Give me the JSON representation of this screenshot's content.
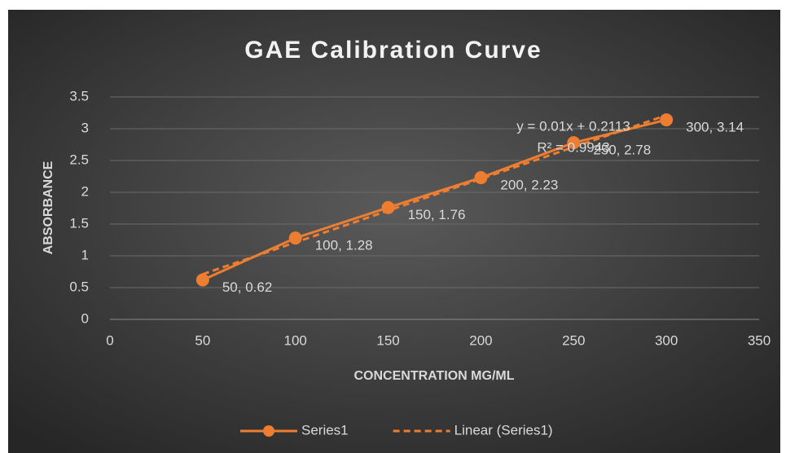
{
  "chart_data": {
    "type": "line",
    "title": "GAE Calibration Curve",
    "xlabel": "CONCENTRATION MG/ML",
    "ylabel": "ABSORBANCE",
    "x": [
      50,
      100,
      150,
      200,
      250,
      300
    ],
    "series": [
      {
        "name": "Series1",
        "color": "#ed7d31",
        "values": [
          0.62,
          1.28,
          1.76,
          2.23,
          2.78,
          3.14
        ],
        "value_labels": [
          "50, 0.62",
          "100, 1.28",
          "150, 1.76",
          "200, 2.23",
          "250, 2.78",
          "300, 3.14"
        ]
      },
      {
        "name": "Linear (Series1)",
        "color": "#ed7d31",
        "dashed": true,
        "x": [
          50,
          300
        ],
        "values": [
          0.7113,
          3.2113
        ]
      }
    ],
    "annotations": [
      "y = 0.01x + 0.2113",
      "R² = 0.9943"
    ],
    "xlim": [
      0,
      350
    ],
    "xticks": [
      0,
      50,
      100,
      150,
      200,
      250,
      300,
      350
    ],
    "ylim": [
      0,
      3.5
    ],
    "yticks": [
      0,
      0.5,
      1,
      1.5,
      2,
      2.5,
      3,
      3.5
    ],
    "grid": true,
    "legend": "bottom"
  }
}
